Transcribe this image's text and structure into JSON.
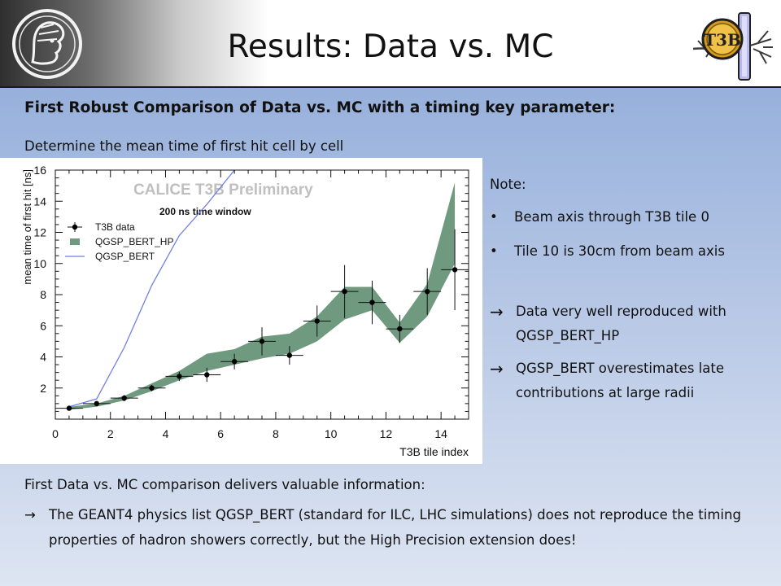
{
  "slide": {
    "title": "Results: Data vs. MC",
    "headline": "First Robust Comparison of Data vs. MC with a timing key parameter:",
    "subline": "Determine the mean time of first hit cell by cell"
  },
  "logos": {
    "left": "max-planck-minerva-logo",
    "right": "t3b-logo",
    "right_text": "T3B"
  },
  "note": {
    "title": "Note:",
    "bullets": [
      "Beam axis through T3B tile 0",
      "Tile 10 is 30cm from beam axis"
    ],
    "arrow_glyph": "→",
    "conclusions": [
      "Data very well reproduced with QGSP_BERT_HP",
      "QGSP_BERT overestimates late contributions at large radii"
    ]
  },
  "bottom": {
    "intro": "First Data vs. MC comparison delivers valuable information:",
    "arrow_glyph": "→",
    "conclusion": "The GEANT4 physics list QGSP_BERT (standard for ILC, LHC simulations) does not reproduce the timing properties of hadron showers correctly, but the High Precision extension does!"
  },
  "colors": {
    "band": "#6f9a7f",
    "line": "#6f7fe8",
    "data": "#000000",
    "watermark": "#bfbfbf"
  },
  "chart_data": {
    "type": "line",
    "title": "CALICE T3B Preliminary",
    "subtitle": "200 ns time window",
    "xlabel": "T3B tile index",
    "ylabel": "mean time of first hit [ns]",
    "xlim": [
      0,
      15
    ],
    "ylim": [
      0,
      16
    ],
    "xticks": [
      0,
      2,
      4,
      6,
      8,
      10,
      12,
      14
    ],
    "yticks": [
      2,
      4,
      6,
      8,
      10,
      12,
      14,
      16
    ],
    "legend_placement": "top-left",
    "grid": false,
    "series": [
      {
        "name": "T3B data",
        "kind": "points-with-errors",
        "x": [
          0.5,
          1.5,
          2.5,
          3.5,
          4.5,
          5.5,
          6.5,
          7.5,
          8.5,
          9.5,
          10.5,
          11.5,
          12.5,
          13.5,
          14.5
        ],
        "y": [
          0.7,
          1.0,
          1.35,
          2.0,
          2.75,
          2.85,
          3.7,
          5.0,
          4.1,
          6.3,
          8.2,
          7.5,
          5.8,
          8.2,
          9.6
        ],
        "yerr": [
          0.1,
          0.15,
          0.2,
          0.2,
          0.3,
          0.45,
          0.5,
          0.9,
          0.6,
          1.0,
          1.7,
          1.4,
          0.9,
          1.5,
          2.6
        ],
        "xerr": 0.5
      },
      {
        "name": "QGSP_BERT_HP",
        "kind": "band",
        "x": [
          0.5,
          1.5,
          2.5,
          3.5,
          4.5,
          5.5,
          6.5,
          7.5,
          8.5,
          9.5,
          10.5,
          11.5,
          12.5,
          13.5,
          14.5
        ],
        "lower": [
          0.6,
          0.8,
          1.2,
          1.8,
          2.5,
          3.1,
          3.5,
          3.9,
          4.2,
          5.0,
          6.4,
          7.0,
          4.9,
          6.6,
          10.0
        ],
        "upper": [
          0.8,
          1.0,
          1.5,
          2.3,
          3.1,
          4.2,
          4.5,
          5.3,
          5.5,
          6.6,
          8.5,
          8.5,
          6.2,
          8.7,
          15.2
        ]
      },
      {
        "name": "QGSP_BERT",
        "kind": "line",
        "x": [
          0.5,
          1.5,
          2.5,
          3.5,
          4.5,
          5.5,
          6.5
        ],
        "y": [
          0.8,
          1.3,
          4.6,
          8.6,
          11.8,
          13.8,
          16.0
        ]
      }
    ]
  }
}
